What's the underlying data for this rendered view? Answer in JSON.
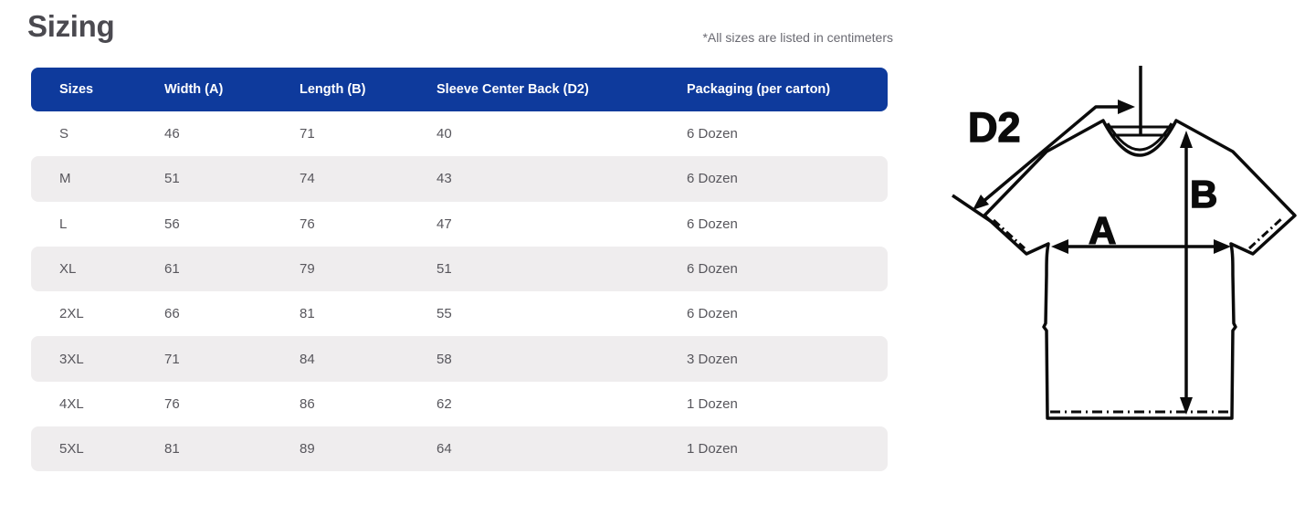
{
  "page": {
    "title": "Sizing",
    "note": "*All sizes are listed in centimeters"
  },
  "table": {
    "columns": [
      "Sizes",
      "Width (A)",
      "Length (B)",
      "Sleeve Center Back (D2)",
      "Packaging (per carton)"
    ],
    "rows": [
      [
        "S",
        "46",
        "71",
        "40",
        "6 Dozen"
      ],
      [
        "M",
        "51",
        "74",
        "43",
        "6 Dozen"
      ],
      [
        "L",
        "56",
        "76",
        "47",
        "6 Dozen"
      ],
      [
        "XL",
        "61",
        "79",
        "51",
        "6 Dozen"
      ],
      [
        "2XL",
        "66",
        "81",
        "55",
        "6 Dozen"
      ],
      [
        "3XL",
        "71",
        "84",
        "58",
        "3 Dozen"
      ],
      [
        "4XL",
        "76",
        "86",
        "62",
        "1 Dozen"
      ],
      [
        "5XL",
        "81",
        "89",
        "64",
        "1 Dozen"
      ]
    ]
  },
  "diagram": {
    "d2_label": "D2",
    "a_label": "A",
    "b_label": "B"
  },
  "colors": {
    "header_blue": "#0e3a9c",
    "row_alt_gray": "#efedee",
    "title_gray": "#4b4a50",
    "note_gray": "#6a6a72",
    "line_black": "#0b0b0b"
  }
}
